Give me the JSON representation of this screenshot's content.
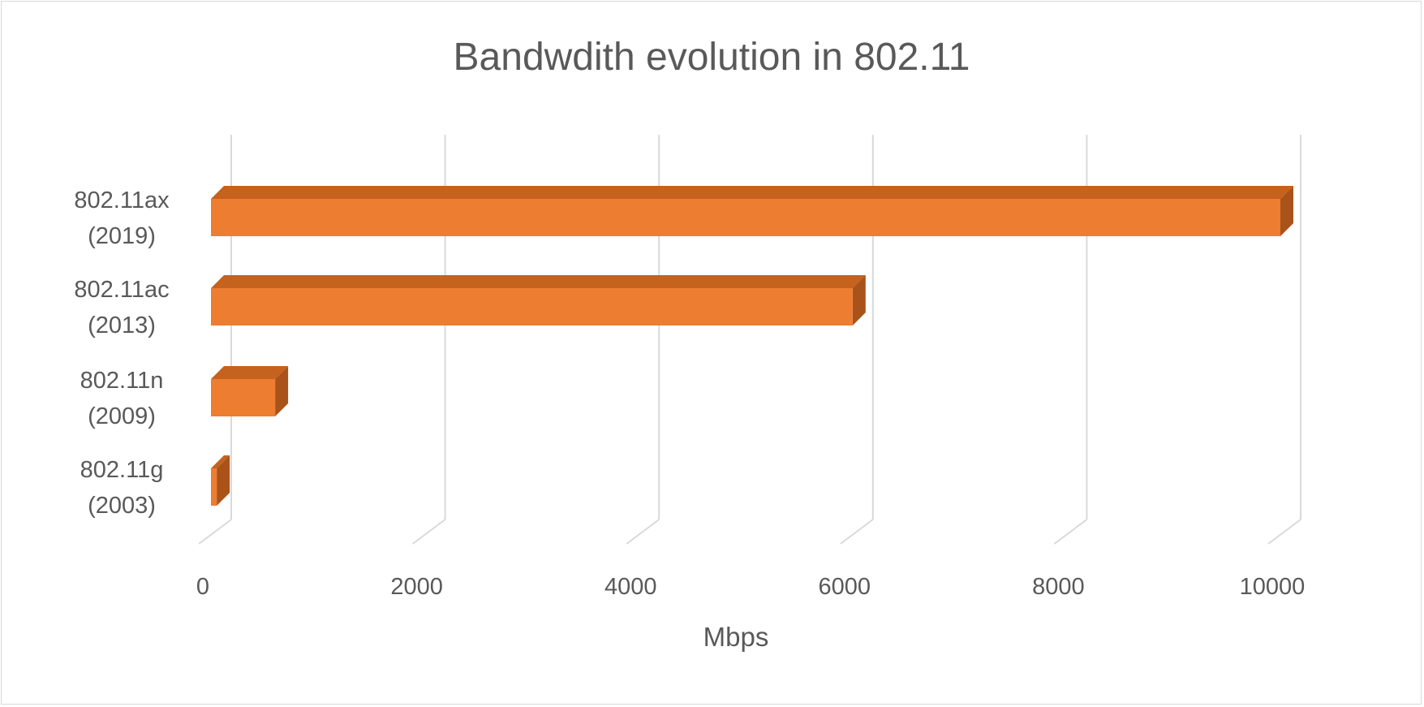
{
  "chart_data": {
    "type": "bar",
    "orientation": "horizontal",
    "style": "3d",
    "title": "Bandwdith evolution in 802.11",
    "xlabel": "Mbps",
    "ylabel": "",
    "xlim": [
      0,
      10000
    ],
    "x_ticks": [
      "0",
      "2000",
      "4000",
      "6000",
      "8000",
      "10000"
    ],
    "grid": true,
    "legend": "none",
    "categories": [
      [
        "802.11g",
        "(2003)"
      ],
      [
        "802.11n",
        "(2009)"
      ],
      [
        "802.11ac",
        "(2013)"
      ],
      [
        "802.11ax",
        "(2019)"
      ]
    ],
    "values": [
      54,
      600,
      6000,
      10000
    ],
    "colors": {
      "bar_front": "#ED7D31",
      "bar_top": "#C4621E",
      "bar_side": "#A9531A",
      "grid": "#d9d9d9",
      "text": "#595959"
    }
  }
}
